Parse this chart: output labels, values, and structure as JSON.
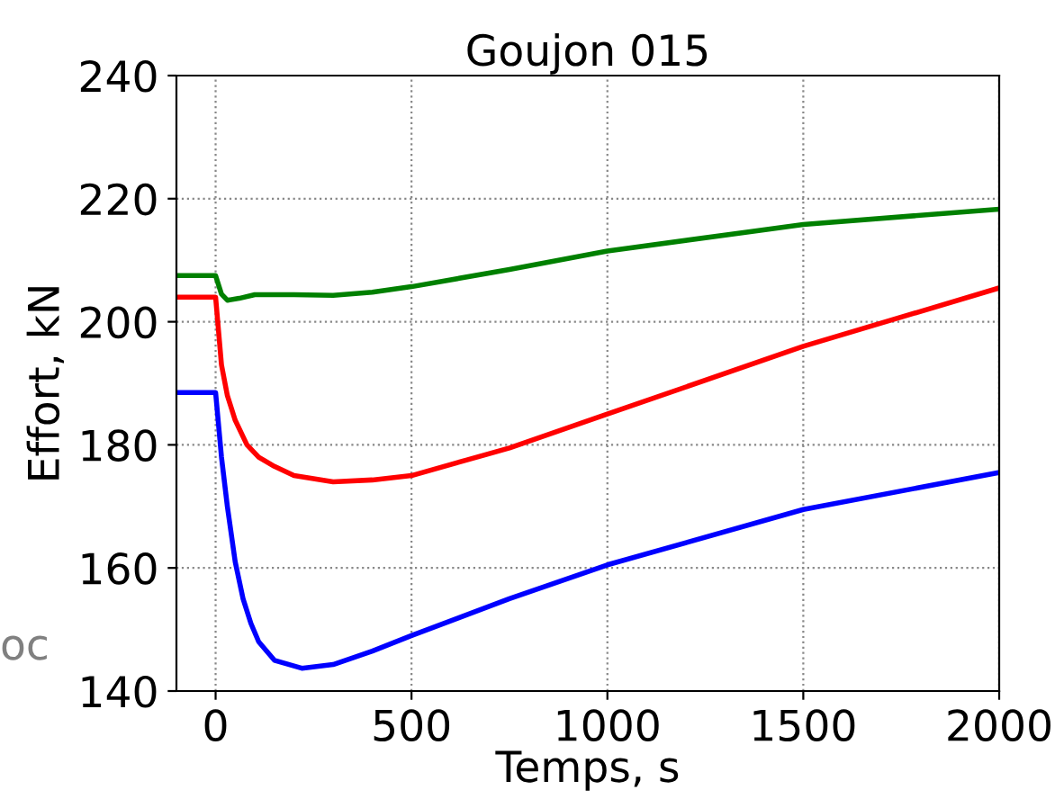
{
  "chart_data": {
    "type": "line",
    "title": "Goujon 015",
    "xlabel": "Temps, s",
    "ylabel": "Effort, kN",
    "xlim": [
      -100,
      2000
    ],
    "xticks": [
      0,
      500,
      1000,
      1500,
      2000
    ],
    "ylim": [
      140,
      240
    ],
    "yticks": [
      140,
      160,
      180,
      200,
      220,
      240
    ],
    "grid": true,
    "line_style": "solid",
    "annotations": [
      "oc"
    ],
    "series": [
      {
        "color": "#008000",
        "x": [
          -100,
          0,
          15,
          30,
          60,
          100,
          200,
          300,
          400,
          500,
          750,
          1000,
          1500,
          2000
        ],
        "values": [
          207.5,
          207.5,
          204.5,
          203.5,
          203.8,
          204.4,
          204.4,
          204.3,
          204.8,
          205.7,
          208.5,
          211.5,
          215.8,
          218.3
        ]
      },
      {
        "color": "#ff0000",
        "x": [
          -100,
          0,
          15,
          30,
          50,
          80,
          110,
          150,
          200,
          300,
          400,
          500,
          750,
          1000,
          1500,
          2000
        ],
        "values": [
          204,
          204,
          193,
          188,
          184,
          180,
          178,
          176.5,
          175,
          174,
          174.3,
          175,
          179.5,
          185,
          196,
          205.5
        ]
      },
      {
        "color": "#0000ff",
        "x": [
          -100,
          0,
          15,
          30,
          50,
          70,
          90,
          110,
          150,
          220,
          300,
          400,
          500,
          750,
          1000,
          1500,
          2000
        ],
        "values": [
          188.5,
          188.5,
          178,
          170,
          161,
          155,
          151,
          148,
          145,
          143.7,
          144.3,
          146.5,
          149,
          155,
          160.5,
          169.5,
          175.5
        ]
      }
    ]
  }
}
